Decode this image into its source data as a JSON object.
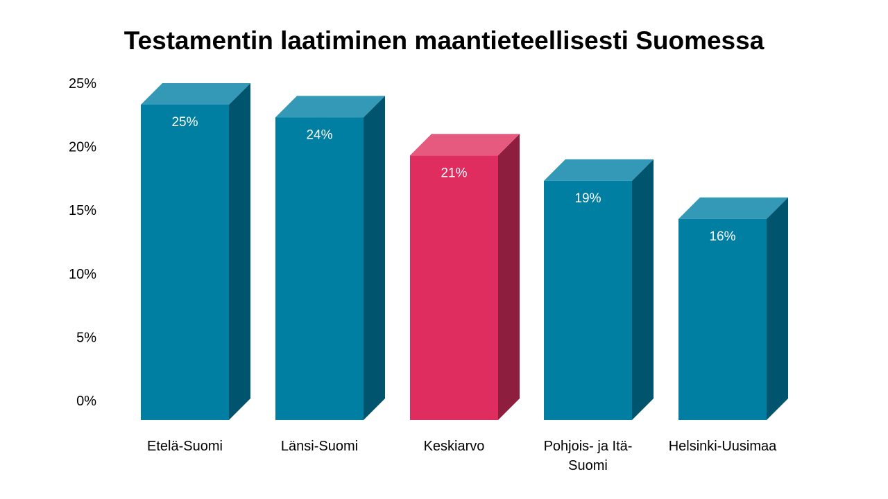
{
  "chart_data": {
    "type": "bar",
    "title": "Testamentin laatiminen maantieteellisesti Suomessa",
    "categories": [
      "Etelä-Suomi",
      "Länsi-Suomi",
      "Keskiarvo",
      "Pohjois- ja Itä-Suomi",
      "Helsinki-Uusimaa"
    ],
    "category_label_lines": [
      [
        "Etelä-Suomi"
      ],
      [
        "Länsi-Suomi"
      ],
      [
        "Keskiarvo"
      ],
      [
        "Pohjois- ja Itä-",
        "Suomi"
      ],
      [
        "Helsinki-Uusimaa"
      ]
    ],
    "values": [
      25,
      24,
      21,
      19,
      16
    ],
    "data_labels": [
      "25%",
      "24%",
      "21%",
      "19%",
      "16%"
    ],
    "highlight_index": 2,
    "ylim": [
      0,
      25
    ],
    "yticks": [
      0,
      5,
      10,
      15,
      20,
      25
    ],
    "ytick_labels": [
      "0%",
      "5%",
      "10%",
      "15%",
      "20%",
      "25%"
    ],
    "xlabel": "",
    "ylabel": "",
    "grid": false,
    "style": "3d-column",
    "colors": {
      "default": {
        "front": "#007fa3",
        "side": "#00546e",
        "top": "#3399b6"
      },
      "highlight": {
        "front": "#e02d5f",
        "side": "#8e1e3e",
        "top": "#e65a7f"
      }
    }
  }
}
